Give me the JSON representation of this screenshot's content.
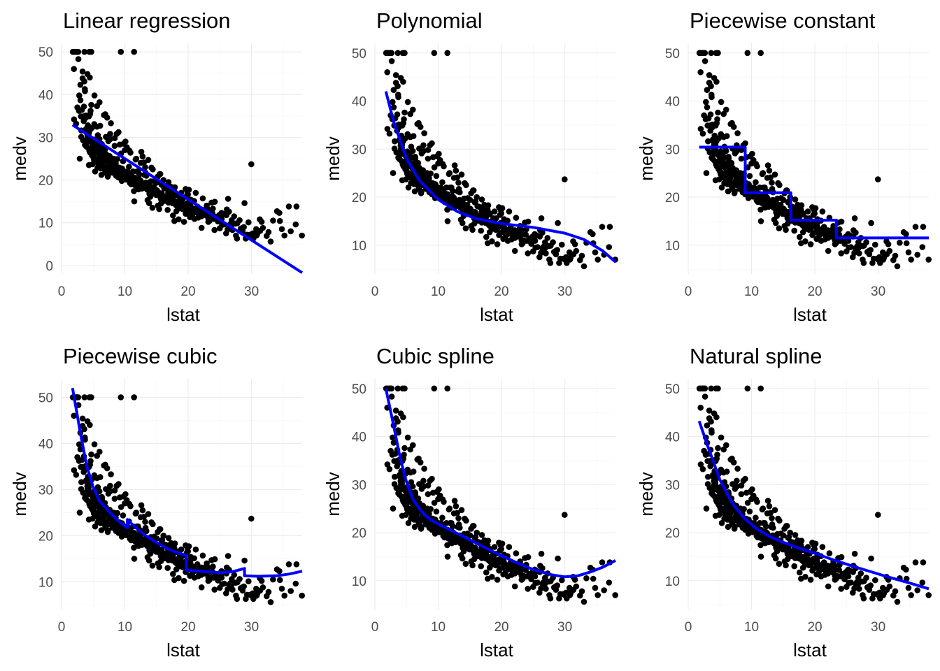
{
  "chart_data": [
    {
      "type": "scatter",
      "title": "Linear regression",
      "xlabel": "lstat",
      "ylabel": "medv",
      "xlim": [
        0,
        38
      ],
      "ylim": [
        -2,
        52
      ],
      "xticks": [
        0,
        10,
        20,
        30
      ],
      "yticks": [
        0,
        10,
        20,
        30,
        40,
        50
      ],
      "grid": true,
      "fit_color": "#0000ff",
      "fit": {
        "x": [
          1.73,
          38
        ],
        "y": [
          32.9,
          -1.7
        ]
      }
    },
    {
      "type": "scatter",
      "title": "Polynomial",
      "xlabel": "lstat",
      "ylabel": "medv",
      "xlim": [
        0,
        38
      ],
      "ylim": [
        4,
        52
      ],
      "xticks": [
        0,
        10,
        20,
        30
      ],
      "yticks": [
        10,
        20,
        30,
        40,
        50
      ],
      "grid": true,
      "fit_color": "#0000ff",
      "fit": {
        "x": [
          1.73,
          3,
          5,
          7,
          10,
          13,
          16,
          20,
          25,
          30,
          33,
          36,
          38
        ],
        "y": [
          42.0,
          35.5,
          28.0,
          23.5,
          19.5,
          17.0,
          15.5,
          14.5,
          13.7,
          12.5,
          11.2,
          8.8,
          6.5
        ]
      }
    },
    {
      "type": "scatter",
      "title": "Piecewise constant",
      "xlabel": "lstat",
      "ylabel": "medv",
      "xlim": [
        0,
        38
      ],
      "ylim": [
        4,
        52
      ],
      "xticks": [
        0,
        10,
        20,
        30
      ],
      "yticks": [
        10,
        20,
        30,
        40,
        50
      ],
      "grid": true,
      "fit_color": "#0000ff",
      "fit": {
        "x": [
          1.73,
          9.0,
          9.0,
          16.2,
          16.2,
          23.4,
          23.4,
          38
        ],
        "y": [
          30.4,
          30.4,
          20.9,
          20.9,
          15.2,
          15.2,
          11.5,
          11.5
        ]
      }
    },
    {
      "type": "scatter",
      "title": "Piecewise cubic",
      "xlabel": "lstat",
      "ylabel": "medv",
      "xlim": [
        0,
        38
      ],
      "ylim": [
        4,
        54
      ],
      "xticks": [
        0,
        10,
        20,
        30
      ],
      "yticks": [
        10,
        20,
        30,
        40,
        50
      ],
      "grid": true,
      "fit_color": "#0000ff",
      "fit": {
        "x": [
          1.73,
          3,
          4,
          5,
          6,
          7,
          8,
          9,
          10.4,
          10.4,
          11.5,
          13,
          15,
          17,
          19.7,
          19.7,
          21,
          23,
          25,
          27,
          28.9,
          28.9,
          31,
          34,
          36,
          38
        ],
        "y": [
          52,
          42,
          35,
          30.5,
          27.5,
          26,
          24.5,
          23.2,
          21.7,
          23.5,
          22,
          20.3,
          18.5,
          17,
          15.7,
          12.5,
          12.4,
          12.2,
          12.0,
          12.2,
          12.9,
          11.3,
          11.2,
          11.3,
          11.7,
          12.3
        ]
      }
    },
    {
      "type": "scatter",
      "title": "Cubic spline",
      "xlabel": "lstat",
      "ylabel": "medv",
      "xlim": [
        0,
        38
      ],
      "ylim": [
        4,
        52
      ],
      "xticks": [
        0,
        10,
        20,
        30
      ],
      "yticks": [
        10,
        20,
        30,
        40,
        50
      ],
      "grid": true,
      "fit_color": "#0000ff",
      "fit": {
        "x": [
          1.73,
          3,
          4,
          5,
          6,
          7,
          8,
          9,
          10,
          12,
          15,
          18,
          20,
          22,
          25,
          28,
          30,
          32,
          34,
          36,
          38
        ],
        "y": [
          50,
          42,
          35.5,
          30.5,
          27,
          25,
          23.5,
          22.5,
          21.8,
          20.5,
          18.5,
          16.5,
          15.2,
          14,
          12.3,
          11.2,
          10.8,
          11,
          11.8,
          12.8,
          14.2
        ]
      }
    },
    {
      "type": "scatter",
      "title": "Natural spline",
      "xlabel": "lstat",
      "ylabel": "medv",
      "xlim": [
        0,
        38
      ],
      "ylim": [
        4,
        52
      ],
      "xticks": [
        0,
        10,
        20,
        30
      ],
      "yticks": [
        10,
        20,
        30,
        40,
        50
      ],
      "grid": true,
      "fit_color": "#0000ff",
      "fit": {
        "x": [
          1.73,
          3,
          5,
          7,
          9,
          11,
          13,
          15,
          17,
          20,
          23,
          26,
          29,
          32,
          35,
          38
        ],
        "y": [
          43.2,
          38.3,
          31,
          26,
          22.8,
          20.6,
          19.1,
          18,
          17,
          15.7,
          14.3,
          13,
          11.8,
          10.6,
          9.5,
          8.3
        ]
      }
    }
  ],
  "points": {
    "x": [
      1.98,
      3.13,
      2.31,
      4.07,
      4.11,
      2.87,
      6.84,
      3.33,
      3.06,
      5.82,
      2.76,
      7.67,
      4.32,
      1.92,
      1.78,
      3.68,
      2.63,
      4.46,
      1.9,
      2.24,
      2.66,
      4.5,
      2.32,
      1.96,
      2.97,
      4.7,
      2.45,
      3.62,
      4.33,
      4.58,
      8.06,
      6.55,
      3.32,
      5.6,
      9.37,
      11.46,
      9.53,
      4.4,
      4.69,
      8.14,
      9.36,
      9.51,
      6.97,
      9.71,
      7.35,
      10.21,
      8.11,
      11.43,
      8.25,
      11.0,
      10.65,
      13.33,
      12.2,
      12.55,
      12.39,
      11.49,
      13.83,
      14.03,
      14.35,
      12.16,
      13.27,
      13.59,
      14.38,
      14.33,
      15.22,
      15.71,
      15.42,
      16.3,
      16.76,
      17.1,
      17.6,
      18.8,
      18.49,
      17.82,
      19.34,
      19.61,
      20.28,
      18.14,
      21.0,
      21.8,
      22.11,
      22.87,
      23.34,
      22.46,
      24.16,
      24.38,
      25.0,
      25.99,
      26.66,
      27.55,
      28.54,
      29.29,
      30.19,
      30.92,
      31.32,
      29.97,
      33.03,
      34.03,
      35.2,
      34.49,
      35.9,
      37.1,
      7.39,
      6.36,
      8.38,
      7.0,
      5.99,
      5.5,
      10.0,
      10.88,
      12.49,
      12.09,
      13.09,
      14.65,
      15.03,
      15.79,
      16.2,
      17.14,
      17.66,
      16.47,
      19.77,
      20.94,
      22.93,
      23.7,
      26.1,
      26.45,
      27.26,
      28.12,
      29.53,
      29.78,
      30.74,
      31.37,
      30.81,
      18.06,
      18.33,
      18.83,
      19.15,
      20.48,
      21.26,
      21.45,
      21.5,
      19.96,
      20.12,
      22.08,
      23.19,
      24.91,
      25.36,
      26.24,
      27.72,
      6.55,
      5.9,
      4.81,
      5.11,
      5.44,
      6.14,
      6.91,
      5.17,
      5.73,
      6.63,
      7.12,
      7.75,
      8.24,
      8.56,
      8.93,
      9.14,
      9.54,
      9.88,
      10.24,
      10.53,
      10.87,
      11.22,
      11.6,
      12.02,
      12.43,
      12.78,
      13.15,
      13.51,
      13.87,
      14.23,
      14.59,
      14.94,
      15.31,
      15.67,
      16.04,
      16.42,
      16.83,
      17.21,
      17.58,
      18.01,
      18.46,
      18.91,
      19.38,
      19.86,
      20.36,
      20.87,
      21.4,
      21.96,
      22.56,
      23.18,
      23.83,
      24.52,
      25.26,
      26.05,
      26.88,
      27.77,
      4.21,
      4.52,
      4.82,
      5.03,
      5.33,
      5.68,
      5.98,
      6.31,
      6.61,
      6.92,
      7.22,
      7.54,
      7.88,
      8.18,
      8.51,
      8.83,
      9.15,
      9.47,
      9.82,
      10.14,
      10.46,
      10.79,
      11.11,
      11.48,
      11.8,
      12.15,
      12.51,
      12.87,
      13.21,
      13.57,
      13.93,
      14.29,
      14.66,
      15.04,
      15.43,
      15.83,
      16.22,
      16.64,
      17.07,
      17.51,
      17.96,
      18.43,
      18.92,
      19.44,
      19.98,
      3.53,
      3.81,
      4.16,
      4.45,
      4.79,
      5.12,
      5.46,
      5.79,
      6.13,
      6.46,
      6.8,
      7.14,
      7.48,
      7.83,
      8.18,
      8.54,
      8.9,
      9.26,
      9.63,
      10.01,
      10.4,
      10.79,
      11.19,
      11.6,
      12.02,
      12.46,
      12.9,
      13.36,
      13.84,
      14.34,
      14.86,
      15.4,
      15.97,
      16.57,
      17.21,
      17.88,
      18.6,
      19.37,
      20.2,
      21.1,
      22.09,
      23.18,
      2.98,
      3.22,
      3.44,
      3.78,
      4.02,
      4.28,
      4.54,
      4.85,
      5.15,
      5.43,
      5.72,
      6.03,
      6.34,
      6.67,
      7.01,
      7.36,
      7.73,
      8.12,
      8.52,
      8.95,
      9.41,
      9.89,
      10.41,
      10.97,
      11.58,
      12.25,
      12.98,
      13.79,
      14.7,
      15.72,
      16.89,
      18.24,
      19.82,
      21.7,
      24.0,
      26.88,
      3.1,
      3.4,
      3.7,
      3.9,
      4.2,
      4.4,
      4.8,
      5.0,
      5.3,
      5.5,
      5.8,
      6.2,
      6.6,
      7.0,
      7.4,
      7.8,
      8.2,
      8.6,
      9.1,
      9.6,
      10.2,
      10.8,
      11.4,
      12.1,
      12.9,
      13.8,
      14.8,
      16.0,
      17.4,
      19.1,
      2.5,
      2.8,
      3.6,
      4.1,
      5.2,
      6.1,
      7.2,
      8.4,
      9.0,
      11.8,
      12.6,
      13.2,
      14.1,
      15.1,
      15.6,
      16.1,
      17.0,
      17.9,
      18.7,
      19.5,
      20.7,
      22.6,
      23.5,
      24.7,
      25.7,
      27.0,
      28.3,
      29.1,
      30.0,
      31.6,
      32.4,
      33.4,
      34.8,
      36.2,
      37.97,
      3.5,
      3.9,
      4.3,
      4.6,
      5.4,
      6.4,
      7.6,
      8.8,
      10.6,
      12.3,
      14.5,
      16.6,
      18.2,
      19.2,
      20.6,
      21.6,
      23.1,
      24.2,
      26.5,
      28.8,
      3.7,
      6.0,
      6.9,
      7.8,
      8.7,
      9.8,
      10.7,
      11.7,
      13.0,
      14.4,
      15.9,
      17.3,
      18.9,
      20.4,
      21.9,
      24.4,
      27.5,
      5.6,
      6.7,
      7.7,
      9.2,
      10.3,
      11.9,
      13.4,
      15.2,
      17.8,
      19.6,
      22.3,
      25.6,
      28.9,
      31.8,
      9.4,
      10.1,
      11.3,
      12.8,
      13.7,
      14.2,
      15.5,
      16.9,
      18.4,
      19.9,
      21.2,
      23.9,
      26.3,
      30.3,
      32.7,
      34.4,
      36.98,
      4.9,
      5.3,
      5.7,
      6.3,
      6.8,
      7.3,
      7.9,
      8.5,
      9.0,
      9.7,
      10.4,
      11.1,
      11.9,
      12.7,
      13.5,
      14.4,
      15.4,
      16.5,
      17.7,
      19.1,
      20.8,
      22.8,
      25.3,
      28.6
    ],
    "y": [
      34.2,
      31.6,
      33.2,
      30.7,
      30.0,
      25.0,
      27.1,
      43.8,
      34.9,
      26.5,
      36.2,
      30.8,
      23.5,
      50.0,
      50.0,
      41.3,
      50.0,
      44.0,
      50.0,
      50.0,
      48.3,
      35.4,
      50.0,
      46.0,
      42.3,
      37.6,
      50.0,
      50.0,
      34.9,
      36.2,
      22.4,
      24.7,
      45.4,
      37.3,
      50.0,
      50.0,
      21.0,
      50.0,
      50.0,
      23.1,
      22.5,
      19.8,
      22.3,
      24.4,
      21.2,
      20.3,
      21.7,
      17.4,
      23.9,
      19.0,
      23.1,
      18.4,
      20.2,
      19.4,
      20.0,
      15.0,
      14.6,
      16.1,
      13.5,
      17.8,
      21.7,
      15.3,
      17.0,
      18.2,
      14.0,
      14.5,
      13.2,
      15.1,
      13.0,
      15.6,
      11.7,
      14.5,
      10.8,
      10.4,
      10.2,
      12.1,
      11.3,
      12.7,
      10.9,
      11.8,
      8.8,
      13.4,
      10.4,
      12.7,
      8.3,
      11.0,
      8.7,
      7.5,
      9.7,
      7.0,
      8.8,
      7.2,
      7.5,
      7.4,
      10.8,
      23.7,
      5.6,
      12.7,
      7.0,
      10.4,
      13.8,
      13.8,
      29.1,
      28.4,
      28.0,
      30.1,
      29.6,
      26.6,
      27.0,
      26.4,
      24.0,
      22.0,
      21.2,
      19.8,
      19.4,
      18.9,
      18.1,
      17.5,
      16.7,
      18.0,
      16.3,
      15.1,
      14.0,
      14.7,
      13.1,
      12.6,
      11.5,
      10.6,
      10.1,
      7.2,
      8.5,
      8.1,
      7.0,
      16.4,
      14.9,
      13.8,
      15.6,
      14.9,
      12.8,
      13.8,
      12.6,
      16.6,
      17.7,
      13.1,
      10.2,
      11.8,
      9.5,
      8.4,
      6.3,
      24.0,
      23.2,
      27.5,
      24.8,
      26.4,
      25.1,
      21.7,
      33.1,
      30.5,
      25.0,
      25.3,
      22.6,
      25.0,
      23.9,
      22.3,
      21.4,
      22.7,
      20.6,
      21.3,
      20.4,
      19.9,
      20.3,
      18.8,
      19.5,
      19.6,
      18.7,
      18.6,
      18.2,
      16.8,
      17.3,
      18.4,
      16.5,
      17.1,
      15.6,
      15.2,
      15.5,
      16.9,
      15.1,
      15.9,
      14.2,
      15.0,
      13.5,
      13.8,
      14.6,
      14.0,
      13.1,
      12.9,
      12.6,
      11.8,
      13.1,
      12.2,
      10.8,
      12.3,
      11.8,
      10.6,
      9.9,
      29.0,
      26.4,
      28.7,
      25.3,
      27.0,
      24.6,
      25.9,
      25.6,
      23.8,
      24.5,
      22.9,
      23.6,
      22.4,
      24.3,
      21.9,
      22.2,
      22.9,
      20.9,
      22.1,
      21.4,
      20.5,
      21.6,
      19.6,
      20.6,
      19.9,
      19.4,
      19.8,
      18.5,
      18.9,
      18.1,
      18.7,
      17.4,
      16.8,
      17.6,
      16.4,
      16.9,
      16.0,
      15.8,
      15.4,
      14.6,
      14.9,
      14.1,
      14.4,
      13.6,
      13.9,
      37.2,
      35.1,
      32.8,
      31.6,
      32.2,
      29.5,
      28.7,
      28.3,
      27.1,
      26.6,
      26.0,
      25.1,
      25.4,
      23.9,
      24.2,
      23.2,
      22.7,
      22.3,
      21.7,
      21.2,
      22.0,
      20.8,
      20.7,
      20.1,
      20.0,
      19.6,
      18.8,
      19.4,
      18.0,
      17.9,
      17.2,
      16.4,
      16.3,
      15.3,
      16.1,
      14.5,
      13.4,
      14.2,
      12.8,
      12.4,
      11.5,
      11.0,
      38.7,
      36.4,
      34.9,
      34.5,
      31.5,
      30.3,
      31.9,
      28.6,
      27.4,
      27.8,
      26.7,
      25.9,
      27.2,
      25.8,
      26.1,
      24.8,
      24.3,
      23.7,
      23.3,
      22.9,
      22.6,
      21.8,
      21.1,
      20.6,
      19.6,
      18.7,
      18.2,
      17.5,
      16.8,
      16.2,
      14.7,
      13.9,
      12.5,
      12.1,
      10.9,
      9.4,
      30.1,
      29.3,
      28.2,
      27.9,
      27.5,
      26.8,
      25.8,
      25.5,
      24.6,
      24.9,
      23.9,
      22.7,
      23.2,
      22.1,
      23.0,
      22.4,
      21.9,
      21.0,
      21.5,
      20.8,
      20.1,
      19.3,
      19.7,
      18.9,
      18.3,
      17.6,
      16.9,
      15.6,
      14.8,
      14.1,
      37.0,
      39.8,
      43.1,
      44.8,
      39.8,
      32.7,
      34.6,
      29.8,
      31.2,
      25.0,
      26.6,
      23.0,
      19.7,
      17.5,
      21.4,
      20.0,
      17.7,
      18.3,
      15.6,
      14.3,
      12.0,
      12.5,
      11.0,
      10.3,
      9.6,
      8.3,
      8.6,
      6.3,
      7.0,
      10.2,
      6.9,
      10.5,
      8.5,
      8.0,
      7.0,
      33.8,
      32.0,
      30.9,
      29.4,
      26.9,
      28.0,
      25.6,
      24.9,
      21.7,
      21.3,
      18.3,
      16.1,
      16.6,
      14.2,
      13.4,
      11.2,
      12.1,
      14.9,
      9.3,
      9.0,
      40.8,
      38.2,
      35.4,
      33.3,
      30.8,
      28.5,
      26.9,
      24.8,
      24.1,
      22.5,
      19.1,
      18.4,
      17.0,
      15.4,
      13.0,
      11.4,
      9.8,
      32.5,
      35.2,
      29.6,
      28.3,
      27.7,
      22.0,
      21.0,
      20.8,
      17.4,
      17.9,
      15.7,
      12.0,
      14.6,
      8.8,
      26.2,
      29.0,
      22.0,
      25.5,
      24.7,
      22.9,
      21.4,
      19.5,
      13.8,
      17.3,
      17.0,
      13.3,
      15.6,
      6.3,
      7.8,
      12.3,
      9.6,
      23.7,
      22.0,
      22.9,
      21.2,
      22.4,
      20.8,
      22.8,
      21.9,
      20.6,
      21.2,
      20.2,
      19.4,
      18.5,
      18.0,
      17.8,
      17.2,
      16.7,
      15.3,
      14.6,
      13.2,
      12.8,
      12.1,
      10.9,
      8.1
    ]
  }
}
